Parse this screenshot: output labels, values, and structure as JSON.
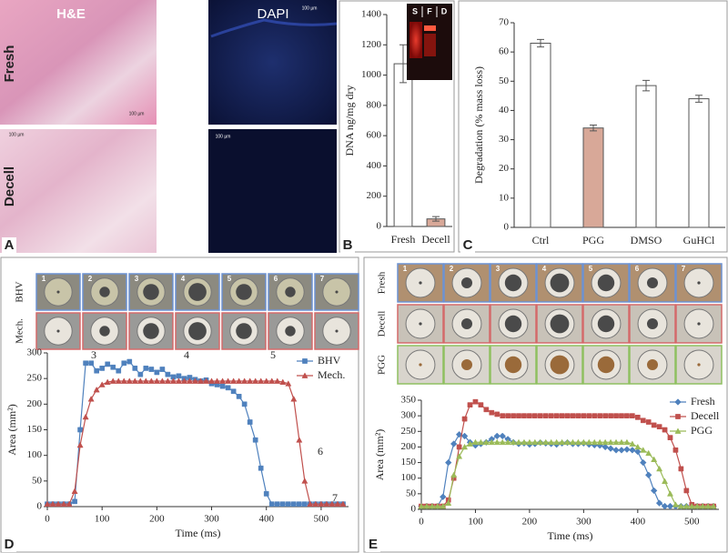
{
  "panel_a": {
    "label": "A",
    "stains": [
      "H&E",
      "DAPI"
    ],
    "rows": [
      "Fresh",
      "Decell"
    ],
    "scale_bar": "100 µm"
  },
  "chart_data": [
    {
      "panel": "B",
      "type": "bar",
      "ylabel": "DNA ng/mg dry",
      "inset_labels": [
        "S",
        "F",
        "D"
      ],
      "categories": [
        "Fresh",
        "Decell"
      ],
      "values": [
        1075,
        50
      ],
      "errors": [
        125,
        15
      ],
      "colors": [
        "#ffffff",
        "#d8a898"
      ],
      "ylim": [
        0,
        1400
      ],
      "yticks": [
        0,
        200,
        400,
        600,
        800,
        1000,
        1200,
        1400
      ]
    },
    {
      "panel": "C",
      "type": "bar",
      "ylabel": "Degradation (% mass loss)",
      "categories": [
        "Ctrl",
        "PGG",
        "DMSO",
        "GuHCl"
      ],
      "values": [
        63,
        34,
        48.5,
        44
      ],
      "errors": [
        1.3,
        1,
        1.8,
        1.2
      ],
      "colors": [
        "#ffffff",
        "#d8a898",
        "#ffffff",
        "#ffffff"
      ],
      "ylim": [
        0,
        70
      ],
      "yticks": [
        0,
        10,
        20,
        30,
        40,
        50,
        60,
        70
      ]
    },
    {
      "panel": "D",
      "type": "line",
      "xlabel": "Time (ms)",
      "ylabel": "Area (mm²)",
      "row_labels": [
        "BHV",
        "Mech."
      ],
      "frame_labels": [
        "1",
        "2",
        "3",
        "4",
        "5",
        "6",
        "7"
      ],
      "annotations": [
        "3",
        "4",
        "5",
        "6",
        "7"
      ],
      "legend": "upper right",
      "x": [
        0,
        10,
        20,
        30,
        40,
        50,
        60,
        70,
        80,
        90,
        100,
        110,
        120,
        130,
        140,
        150,
        160,
        170,
        180,
        190,
        200,
        210,
        220,
        230,
        240,
        250,
        260,
        270,
        280,
        290,
        300,
        310,
        320,
        330,
        340,
        350,
        360,
        370,
        380,
        390,
        400,
        410,
        420,
        430,
        440,
        450,
        460,
        470,
        480,
        490,
        500,
        510,
        520,
        530,
        540
      ],
      "series": [
        {
          "name": "BHV",
          "color": "#4f81bd",
          "marker": "square",
          "values": [
            5,
            5,
            5,
            5,
            5,
            10,
            150,
            280,
            280,
            265,
            270,
            278,
            272,
            265,
            280,
            283,
            270,
            258,
            270,
            268,
            262,
            268,
            258,
            253,
            255,
            250,
            252,
            248,
            245,
            247,
            240,
            238,
            235,
            232,
            225,
            215,
            200,
            165,
            130,
            75,
            25,
            5,
            5,
            5,
            5,
            5,
            5,
            5,
            5,
            5,
            5,
            5,
            5,
            5,
            5
          ]
        },
        {
          "name": "Mech.",
          "color": "#c0504d",
          "marker": "triangle",
          "values": [
            5,
            5,
            5,
            5,
            5,
            30,
            120,
            175,
            210,
            228,
            238,
            243,
            245,
            245,
            245,
            245,
            245,
            245,
            245,
            245,
            245,
            245,
            245,
            245,
            245,
            245,
            245,
            245,
            245,
            245,
            245,
            245,
            245,
            245,
            245,
            245,
            245,
            245,
            245,
            245,
            245,
            245,
            245,
            243,
            240,
            210,
            130,
            50,
            5,
            5,
            5,
            5,
            5,
            5,
            5
          ]
        }
      ],
      "xlim": [
        0,
        550
      ],
      "xticks": [
        0,
        100,
        200,
        300,
        400,
        500
      ],
      "ylim": [
        0,
        300
      ],
      "yticks": [
        0,
        50,
        100,
        150,
        200,
        250,
        300
      ]
    },
    {
      "panel": "E",
      "type": "line",
      "xlabel": "Time (ms)",
      "ylabel": "Area (mm²)",
      "row_labels": [
        "Fresh",
        "Decell",
        "PGG"
      ],
      "frame_labels": [
        "1",
        "2",
        "3",
        "4",
        "5",
        "6",
        "7"
      ],
      "legend": "upper right",
      "x": [
        0,
        10,
        20,
        30,
        40,
        50,
        60,
        70,
        80,
        90,
        100,
        110,
        120,
        130,
        140,
        150,
        160,
        170,
        180,
        190,
        200,
        210,
        220,
        230,
        240,
        250,
        260,
        270,
        280,
        290,
        300,
        310,
        320,
        330,
        340,
        350,
        360,
        370,
        380,
        390,
        400,
        410,
        420,
        430,
        440,
        450,
        460,
        470,
        480,
        490,
        500,
        510,
        520,
        530,
        540
      ],
      "series": [
        {
          "name": "Fresh",
          "color": "#4f81bd",
          "marker": "diamond",
          "values": [
            10,
            10,
            10,
            10,
            40,
            150,
            210,
            240,
            235,
            215,
            205,
            210,
            215,
            225,
            235,
            235,
            225,
            215,
            210,
            212,
            208,
            210,
            214,
            212,
            210,
            208,
            212,
            214,
            210,
            210,
            212,
            208,
            206,
            205,
            200,
            195,
            190,
            190,
            192,
            190,
            185,
            150,
            110,
            60,
            20,
            10,
            10,
            10,
            10,
            10,
            10,
            10,
            10,
            10,
            10
          ]
        },
        {
          "name": "Decell",
          "color": "#c0504d",
          "marker": "square",
          "values": [
            10,
            10,
            10,
            10,
            10,
            30,
            100,
            200,
            290,
            335,
            345,
            335,
            320,
            310,
            305,
            300,
            300,
            300,
            300,
            300,
            300,
            300,
            300,
            300,
            300,
            300,
            300,
            300,
            300,
            300,
            300,
            300,
            300,
            300,
            300,
            300,
            300,
            300,
            300,
            300,
            295,
            285,
            280,
            270,
            265,
            255,
            230,
            190,
            130,
            60,
            15,
            10,
            10,
            10,
            10
          ]
        },
        {
          "name": "PGG",
          "color": "#9bbb59",
          "marker": "triangle",
          "values": [
            10,
            10,
            10,
            10,
            10,
            20,
            110,
            170,
            200,
            210,
            215,
            215,
            215,
            215,
            215,
            215,
            215,
            215,
            215,
            215,
            215,
            215,
            215,
            215,
            215,
            215,
            215,
            215,
            215,
            215,
            215,
            215,
            215,
            215,
            215,
            215,
            215,
            215,
            215,
            210,
            200,
            190,
            180,
            160,
            130,
            90,
            50,
            15,
            10,
            10,
            10,
            10,
            10,
            10,
            10
          ]
        }
      ],
      "xlim": [
        0,
        550
      ],
      "xticks": [
        0,
        100,
        200,
        300,
        400,
        500
      ],
      "ylim": [
        0,
        350
      ],
      "yticks": [
        0,
        50,
        100,
        150,
        200,
        250,
        300,
        350
      ]
    }
  ]
}
